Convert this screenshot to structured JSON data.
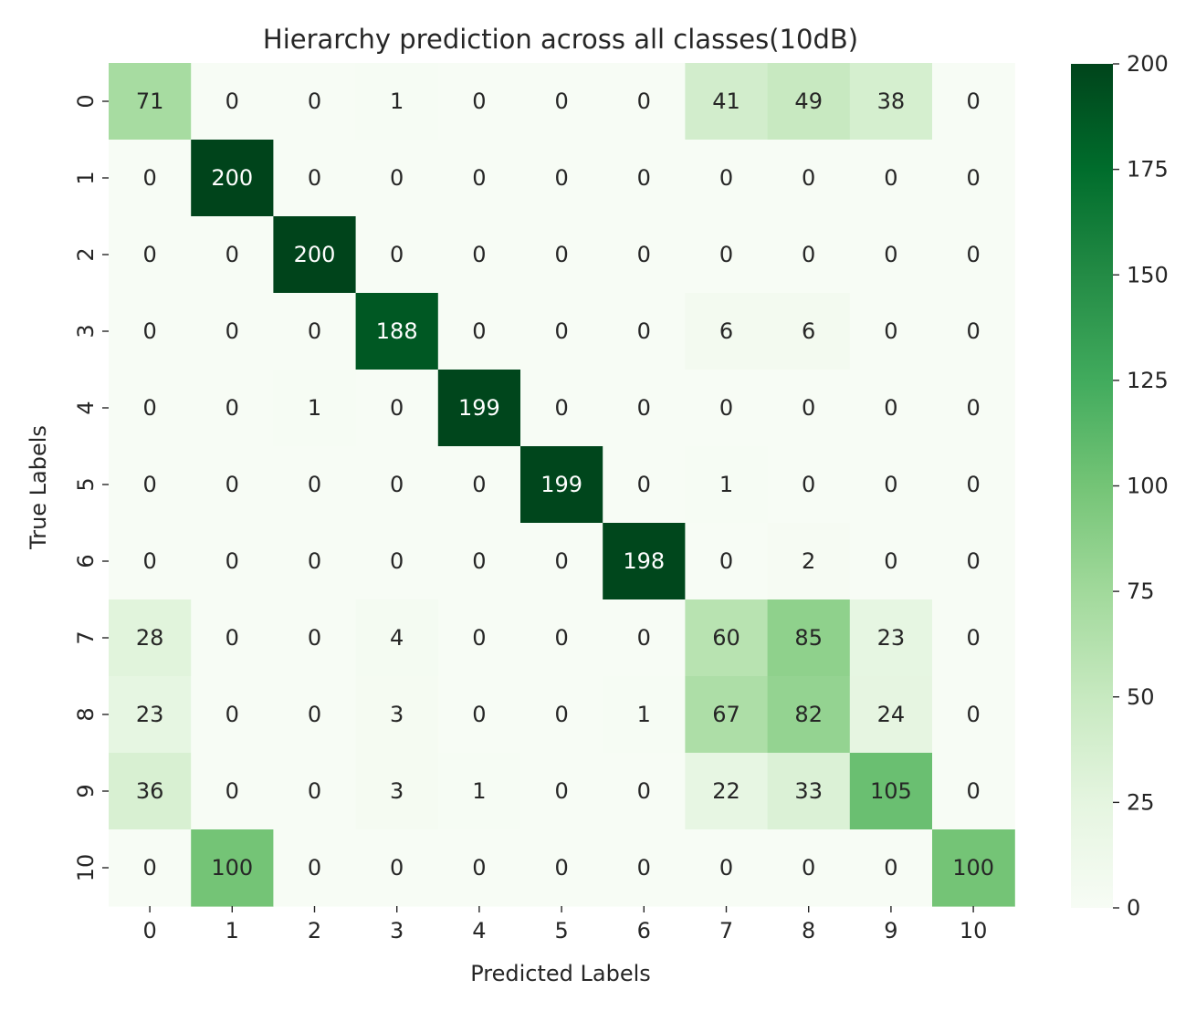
{
  "chart_data": {
    "type": "heatmap",
    "title": "Hierarchy prediction across all classes(10dB)",
    "xlabel": "Predicted Labels",
    "ylabel": "True Labels",
    "x_categories": [
      "0",
      "1",
      "2",
      "3",
      "4",
      "5",
      "6",
      "7",
      "8",
      "9",
      "10"
    ],
    "y_categories": [
      "0",
      "1",
      "2",
      "3",
      "4",
      "5",
      "6",
      "7",
      "8",
      "9",
      "10"
    ],
    "values": [
      [
        71,
        0,
        0,
        1,
        0,
        0,
        0,
        41,
        49,
        38,
        0
      ],
      [
        0,
        200,
        0,
        0,
        0,
        0,
        0,
        0,
        0,
        0,
        0
      ],
      [
        0,
        0,
        200,
        0,
        0,
        0,
        0,
        0,
        0,
        0,
        0
      ],
      [
        0,
        0,
        0,
        188,
        0,
        0,
        0,
        6,
        6,
        0,
        0
      ],
      [
        0,
        0,
        1,
        0,
        199,
        0,
        0,
        0,
        0,
        0,
        0
      ],
      [
        0,
        0,
        0,
        0,
        0,
        199,
        0,
        1,
        0,
        0,
        0
      ],
      [
        0,
        0,
        0,
        0,
        0,
        0,
        198,
        0,
        2,
        0,
        0
      ],
      [
        28,
        0,
        0,
        4,
        0,
        0,
        0,
        60,
        85,
        23,
        0
      ],
      [
        23,
        0,
        0,
        3,
        0,
        0,
        1,
        67,
        82,
        24,
        0
      ],
      [
        36,
        0,
        0,
        3,
        1,
        0,
        0,
        22,
        33,
        105,
        0
      ],
      [
        0,
        100,
        0,
        0,
        0,
        0,
        0,
        0,
        0,
        0,
        100
      ]
    ],
    "vmin": 0,
    "vmax": 200,
    "colormap": "Greens",
    "colorbar_ticks": [
      0,
      25,
      50,
      75,
      100,
      125,
      150,
      175,
      200
    ],
    "grid": false,
    "legend": "colorbar-right"
  }
}
